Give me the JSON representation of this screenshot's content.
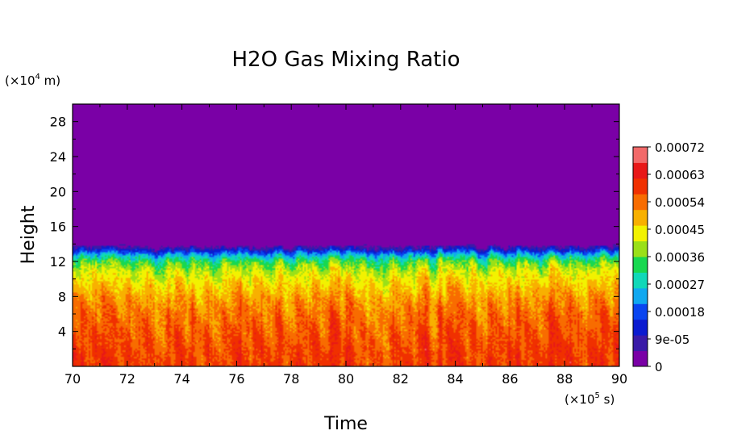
{
  "chart_data": {
    "type": "heatmap",
    "title": "H2O Gas Mixing Ratio",
    "xlabel": "Time",
    "ylabel": "Height",
    "x_unit": "(×10",
    "x_unit_exp": "5",
    "x_unit_tail": " s)",
    "y_unit": "(×10",
    "y_unit_exp": "4",
    "y_unit_tail": " m)",
    "xlim": [
      70,
      90
    ],
    "ylim": [
      0,
      30
    ],
    "x_ticks": [
      70,
      72,
      74,
      76,
      78,
      80,
      82,
      84,
      86,
      88,
      90
    ],
    "x_tick_labels": [
      "70",
      "72",
      "74",
      "76",
      "78",
      "80",
      "82",
      "84",
      "86",
      "88",
      "90"
    ],
    "y_ticks": [
      4,
      8,
      12,
      16,
      20,
      24,
      28
    ],
    "y_tick_labels": [
      "4",
      "8",
      "12",
      "16",
      "20",
      "24",
      "28"
    ],
    "colorbar": {
      "min": 0,
      "max": 0.00072,
      "tick_values": [
        0,
        9e-05,
        0.00018,
        0.00027,
        0.00036,
        0.00045,
        0.00054,
        0.00063,
        0.00072
      ],
      "tick_labels": [
        "0",
        "9e-05",
        "0.00018",
        "0.00027",
        "0.00036",
        "0.00045",
        "0.00054",
        "0.00063",
        "0.00072"
      ],
      "colors": [
        "#7a00a6",
        "#3a1ba8",
        "#0b1bd0",
        "#0a45f0",
        "#10a8f0",
        "#10d8b8",
        "#18d850",
        "#9ae018",
        "#f2f200",
        "#f8b000",
        "#f86c00",
        "#f03000",
        "#e81818",
        "#f26a6a"
      ]
    },
    "profile": {
      "heights": [
        0,
        2,
        4,
        6,
        8,
        10,
        11,
        12,
        12.5,
        13,
        13.3,
        13.6,
        14,
        30
      ],
      "values": [
        0.0006,
        0.00059,
        0.00057,
        0.00055,
        0.00051,
        0.00045,
        0.00041,
        0.00034,
        0.00027,
        0.00018,
        0.00011,
        5e-05,
        0.0,
        0.0
      ]
    }
  }
}
